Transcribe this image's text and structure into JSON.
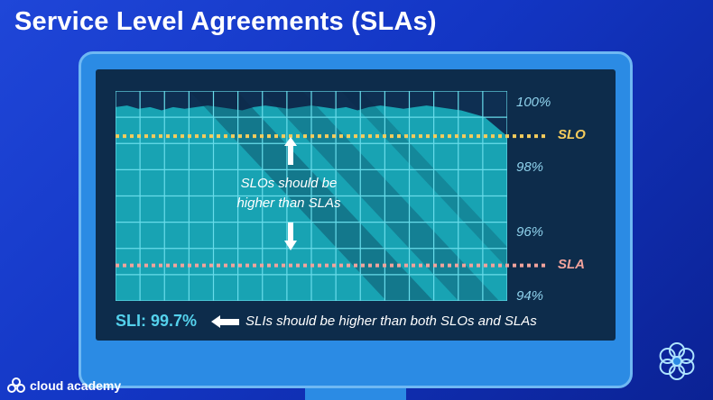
{
  "slide": {
    "title": "Service Level Agreements (SLAs)"
  },
  "colors": {
    "background": "#1b3fd3",
    "monitor": "#2b8be4",
    "screen": "#0d2c4b",
    "plot_fill": "#18a3b3",
    "grid": "#68dcea",
    "slo_line": "#f5cc5c",
    "sla_line": "#f2a39c",
    "sli_text": "#54d1ec"
  },
  "chart_data": {
    "type": "area",
    "ylim": [
      93.9,
      100.4
    ],
    "y_ticks": [
      {
        "value": 100,
        "label": "100%"
      },
      {
        "value": 98,
        "label": "98%"
      },
      {
        "value": 96,
        "label": "96%"
      },
      {
        "value": 94,
        "label": "94%"
      }
    ],
    "reference_lines": [
      {
        "name": "SLO",
        "label": "SLO",
        "value": 99.0
      },
      {
        "name": "SLA",
        "label": "SLA",
        "value": 95.0
      }
    ],
    "series": [
      {
        "values": [
          99.9,
          99.95,
          99.85,
          99.9,
          99.8,
          99.9,
          99.85,
          99.9,
          99.95,
          99.9,
          99.85,
          99.8,
          99.9,
          99.95,
          99.9,
          99.85,
          99.9,
          99.95,
          99.9,
          99.85,
          99.9,
          99.8,
          99.9,
          99.95,
          99.9,
          99.85,
          99.9,
          99.95,
          99.9,
          99.85,
          99.8,
          99.7,
          99.6,
          99.3,
          99.0
        ]
      }
    ],
    "grid": true,
    "annotation": {
      "line1": "SLOs should be",
      "line2": "higher than SLAs"
    }
  },
  "sli": {
    "label": "SLI: 99.7%",
    "note": "SLIs should be higher than both SLOs and SLAs"
  },
  "logo": {
    "text": "cloud academy"
  },
  "icons": {
    "arrow_up": "arrow-up-icon",
    "arrow_down": "arrow-down-icon",
    "arrow_left": "arrow-left-icon",
    "logo": "cloud-academy-logo-icon",
    "brand": "brand-flower-icon"
  }
}
